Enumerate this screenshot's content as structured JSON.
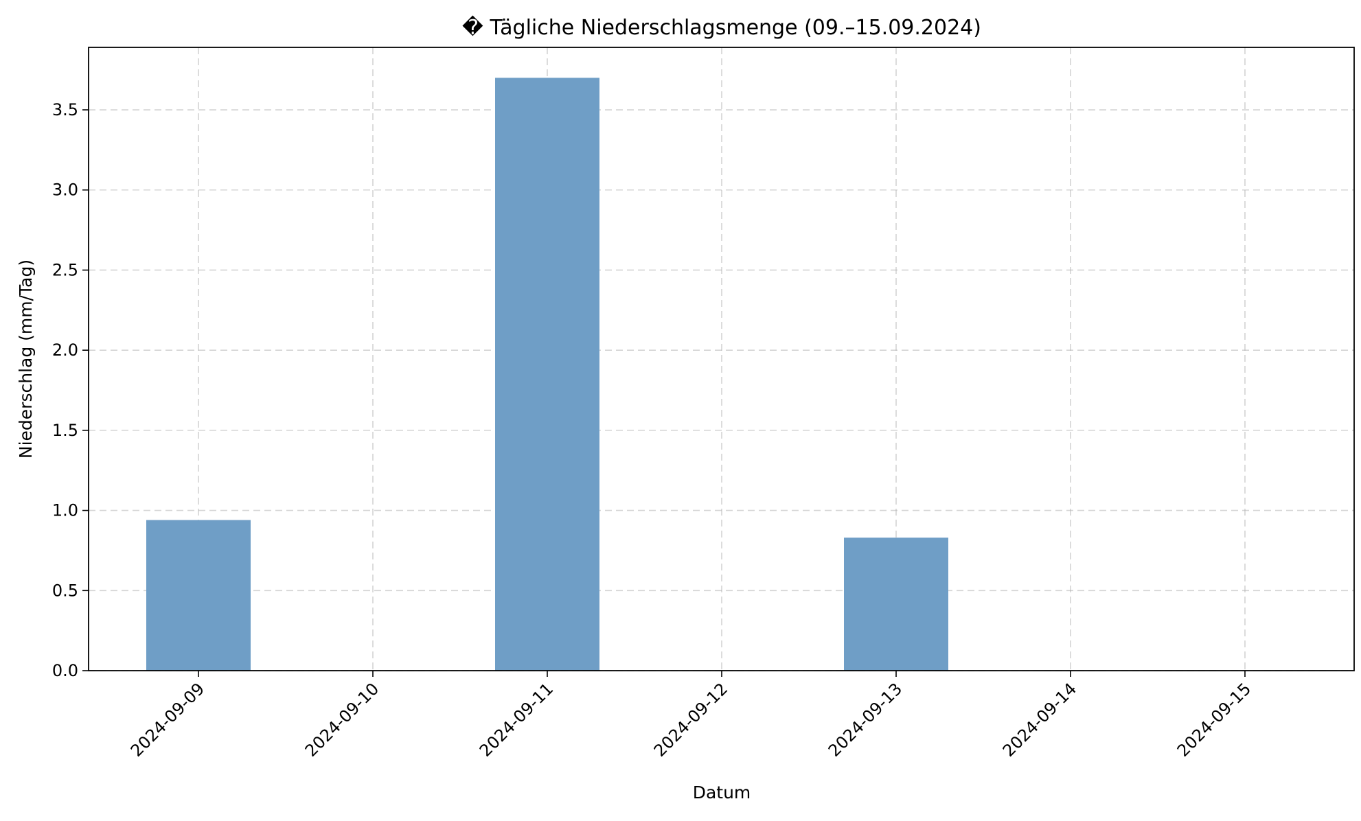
{
  "chart_data": {
    "type": "bar",
    "title": "� Tägliche Niederschlagsmenge (09.–15.09.2024)",
    "xlabel": "Datum",
    "ylabel": "Niederschlag (mm/Tag)",
    "categories": [
      "2024-09-09",
      "2024-09-10",
      "2024-09-11",
      "2024-09-12",
      "2024-09-13",
      "2024-09-14",
      "2024-09-15"
    ],
    "values": [
      0.94,
      0,
      3.7,
      0,
      0.83,
      0,
      0
    ],
    "ylim": [
      0,
      3.89
    ],
    "yticks": [
      "0.0",
      "0.5",
      "1.0",
      "1.5",
      "2.0",
      "2.5",
      "3.0",
      "3.5"
    ],
    "grid": true,
    "bar_color": "#6f9ec6"
  }
}
